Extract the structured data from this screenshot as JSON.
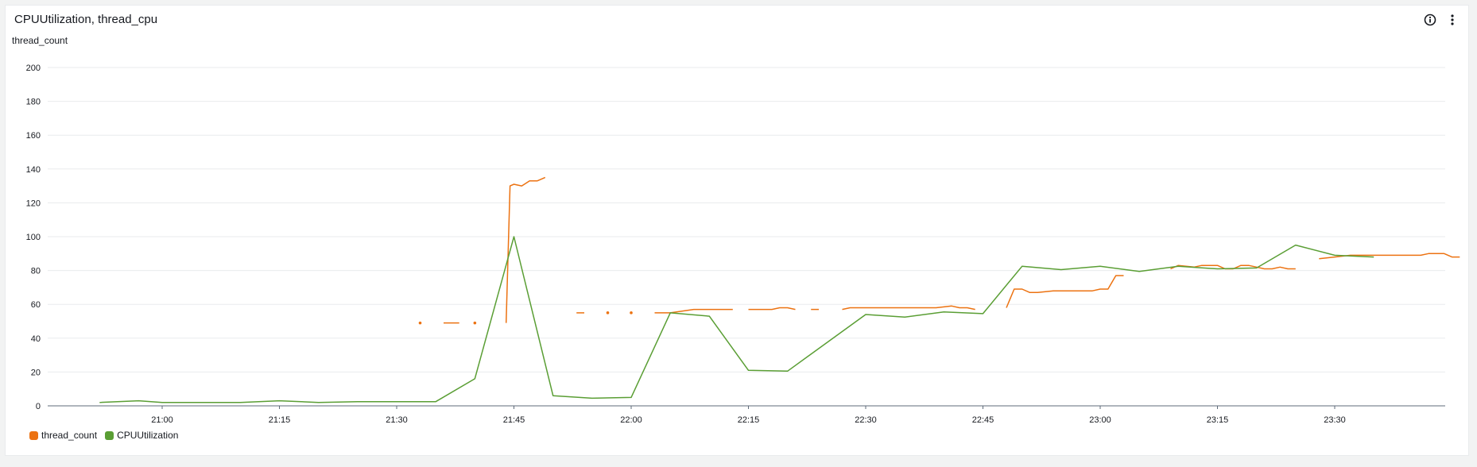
{
  "widget": {
    "title": "CPUUtilization, thread_cpu",
    "info_icon": "info-circle-icon",
    "menu_icon": "vertical-ellipsis-icon"
  },
  "chart_data": {
    "type": "line",
    "ylabel": "thread_count",
    "xlabel": "",
    "ylim": [
      0,
      200
    ],
    "y_ticks": [
      0,
      20,
      40,
      60,
      80,
      100,
      120,
      140,
      160,
      180,
      200
    ],
    "x_ticks": [
      "21:00",
      "21:15",
      "21:30",
      "21:45",
      "22:00",
      "22:15",
      "22:30",
      "22:45",
      "23:00",
      "23:15",
      "23:30"
    ],
    "grid": true,
    "legend_position": "bottom-left",
    "series": [
      {
        "name": "thread_count",
        "color": "#ec7211",
        "segments": [
          [
            [
              "21:33",
              49
            ]
          ],
          [
            [
              "21:36",
              49
            ],
            [
              "21:38",
              49
            ]
          ],
          [
            [
              "21:40",
              49
            ]
          ],
          [
            [
              "21:44",
              49
            ],
            [
              "21:44.5",
              130
            ],
            [
              "21:45",
              131
            ],
            [
              "21:46",
              130
            ],
            [
              "21:47",
              133
            ],
            [
              "21:48",
              133
            ],
            [
              "21:49",
              135
            ]
          ],
          [
            [
              "21:53",
              55
            ],
            [
              "21:54",
              55
            ]
          ],
          [
            [
              "21:57",
              55
            ]
          ],
          [
            [
              "22:00",
              55
            ]
          ],
          [
            [
              "22:03",
              55
            ],
            [
              "22:05",
              55
            ],
            [
              "22:08",
              57
            ],
            [
              "22:10",
              57
            ],
            [
              "22:13",
              57
            ]
          ],
          [
            [
              "22:15",
              57
            ],
            [
              "22:18",
              57
            ],
            [
              "22:19",
              58
            ],
            [
              "22:20",
              58
            ],
            [
              "22:21",
              57
            ]
          ],
          [
            [
              "22:23",
              57
            ],
            [
              "22:24",
              57
            ]
          ],
          [
            [
              "22:27",
              57
            ],
            [
              "22:28",
              58
            ],
            [
              "22:30",
              58
            ],
            [
              "22:33",
              58
            ],
            [
              "22:36",
              58
            ],
            [
              "22:39",
              58
            ],
            [
              "22:41",
              59
            ],
            [
              "22:42",
              58
            ],
            [
              "22:43",
              58
            ],
            [
              "22:44",
              57
            ]
          ],
          [
            [
              "22:48",
              58
            ],
            [
              "22:49",
              69
            ],
            [
              "22:50",
              69
            ],
            [
              "22:51",
              67
            ],
            [
              "22:52",
              67
            ],
            [
              "22:54",
              68
            ],
            [
              "22:56",
              68
            ],
            [
              "22:59",
              68
            ],
            [
              "23:00",
              69
            ],
            [
              "23:01",
              69
            ],
            [
              "23:02",
              77
            ],
            [
              "23:03",
              77
            ]
          ],
          [
            [
              "23:09",
              81
            ],
            [
              "23:10",
              83
            ],
            [
              "23:12",
              82
            ],
            [
              "23:13",
              83
            ],
            [
              "23:15",
              83
            ],
            [
              "23:16",
              81
            ],
            [
              "23:17",
              81
            ],
            [
              "23:18",
              83
            ],
            [
              "23:19",
              83
            ],
            [
              "23:20",
              82
            ],
            [
              "23:21",
              81
            ],
            [
              "23:22",
              81
            ],
            [
              "23:23",
              82
            ],
            [
              "23:24",
              81
            ],
            [
              "23:25",
              81
            ]
          ],
          [
            [
              "23:28",
              87
            ],
            [
              "23:30",
              88
            ],
            [
              "23:32",
              89
            ],
            [
              "23:35",
              89
            ],
            [
              "23:38",
              89
            ],
            [
              "23:41",
              89
            ],
            [
              "23:42",
              90
            ],
            [
              "23:44",
              90
            ],
            [
              "23:45",
              88
            ],
            [
              "23:46",
              88
            ]
          ]
        ]
      },
      {
        "name": "CPUUtilization",
        "color": "#5a9e34",
        "segments": [
          [
            [
              "20:52",
              2
            ],
            [
              "20:57",
              3
            ],
            [
              "21:00",
              2
            ],
            [
              "21:05",
              2
            ],
            [
              "21:10",
              2
            ],
            [
              "21:15",
              3
            ],
            [
              "21:20",
              2
            ],
            [
              "21:25",
              2.5
            ],
            [
              "21:30",
              2.5
            ],
            [
              "21:35",
              2.5
            ],
            [
              "21:40",
              16
            ],
            [
              "21:45",
              100
            ],
            [
              "21:50",
              6
            ],
            [
              "21:55",
              4.5
            ],
            [
              "22:00",
              5
            ],
            [
              "22:05",
              55
            ],
            [
              "22:10",
              53
            ],
            [
              "22:15",
              21
            ],
            [
              "22:20",
              20.5
            ],
            [
              "22:30",
              54
            ],
            [
              "22:35",
              52.5
            ],
            [
              "22:40",
              55.5
            ],
            [
              "22:45",
              54.5
            ],
            [
              "22:50",
              82.5
            ],
            [
              "22:55",
              80.5
            ],
            [
              "23:00",
              82.5
            ],
            [
              "23:05",
              79.5
            ],
            [
              "23:10",
              82.5
            ],
            [
              "23:15",
              81
            ],
            [
              "23:20",
              81.5
            ],
            [
              "23:25",
              95
            ],
            [
              "23:30",
              89
            ],
            [
              "23:35",
              88
            ]
          ]
        ]
      }
    ]
  }
}
